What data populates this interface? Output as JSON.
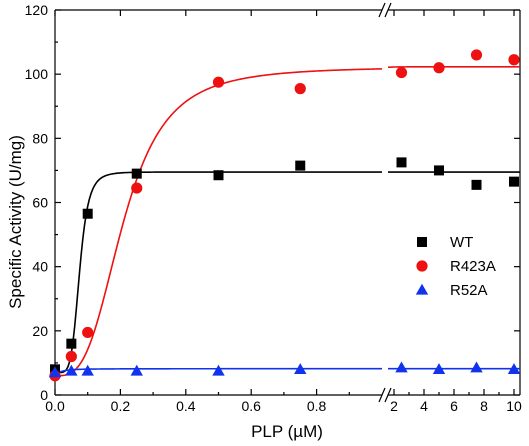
{
  "chart_data": {
    "type": "scatter",
    "title": "",
    "xlabel": "PLP (µM)",
    "ylabel": "Specific Activity (U/mg)",
    "ylim": [
      0,
      120
    ],
    "yticks": [
      0,
      20,
      40,
      60,
      80,
      100,
      120
    ],
    "x_left_range": [
      0,
      1.0
    ],
    "x_left_ticks": [
      0.0,
      0.2,
      0.4,
      0.6,
      0.8
    ],
    "x_left_tick_labels": [
      "0.0",
      "0.2",
      "0.4",
      "0.6",
      "0.8"
    ],
    "x_right_range": [
      1.6,
      10.4
    ],
    "x_right_ticks": [
      2,
      4,
      6,
      8,
      10
    ],
    "x_right_tick_labels": [
      "2",
      "4",
      "6",
      "8",
      "10"
    ],
    "axis_break": true,
    "legend_position": "center-right",
    "series": [
      {
        "name": "WT",
        "marker": "square",
        "color": "#000000",
        "x": [
          0,
          0.05,
          0.1,
          0.25,
          0.5,
          0.75,
          2.5,
          5,
          7.5,
          10
        ],
        "y": [
          8,
          16,
          56.5,
          69,
          68.5,
          71.5,
          72.5,
          70,
          65.5,
          66.5
        ],
        "fit": {
          "vmax": 69.5,
          "k": 0.075,
          "n": 5.5,
          "v0": 7
        }
      },
      {
        "name": "R423A",
        "marker": "circle",
        "color": "#ee1111",
        "x": [
          0,
          0.05,
          0.1,
          0.25,
          0.5,
          0.75,
          2.5,
          5,
          7.5,
          10
        ],
        "y": [
          6,
          12,
          19.5,
          64.5,
          97.5,
          95.5,
          100.5,
          102,
          106,
          104.5
        ],
        "fit": {
          "vmax": 102.3,
          "k": 0.21,
          "n": 3.2,
          "v0": 6
        }
      },
      {
        "name": "R52A",
        "marker": "triangle",
        "color": "#1133ee",
        "x": [
          0,
          0.05,
          0.1,
          0.25,
          0.5,
          0.75,
          2.5,
          5,
          7.5,
          10
        ],
        "y": [
          7,
          7.5,
          7.5,
          7.5,
          7.5,
          8,
          8.5,
          8,
          8.5,
          8
        ],
        "fit": {
          "vmax": 8.2,
          "k": 0.02,
          "n": 1.5,
          "v0": 6.5
        }
      }
    ]
  }
}
